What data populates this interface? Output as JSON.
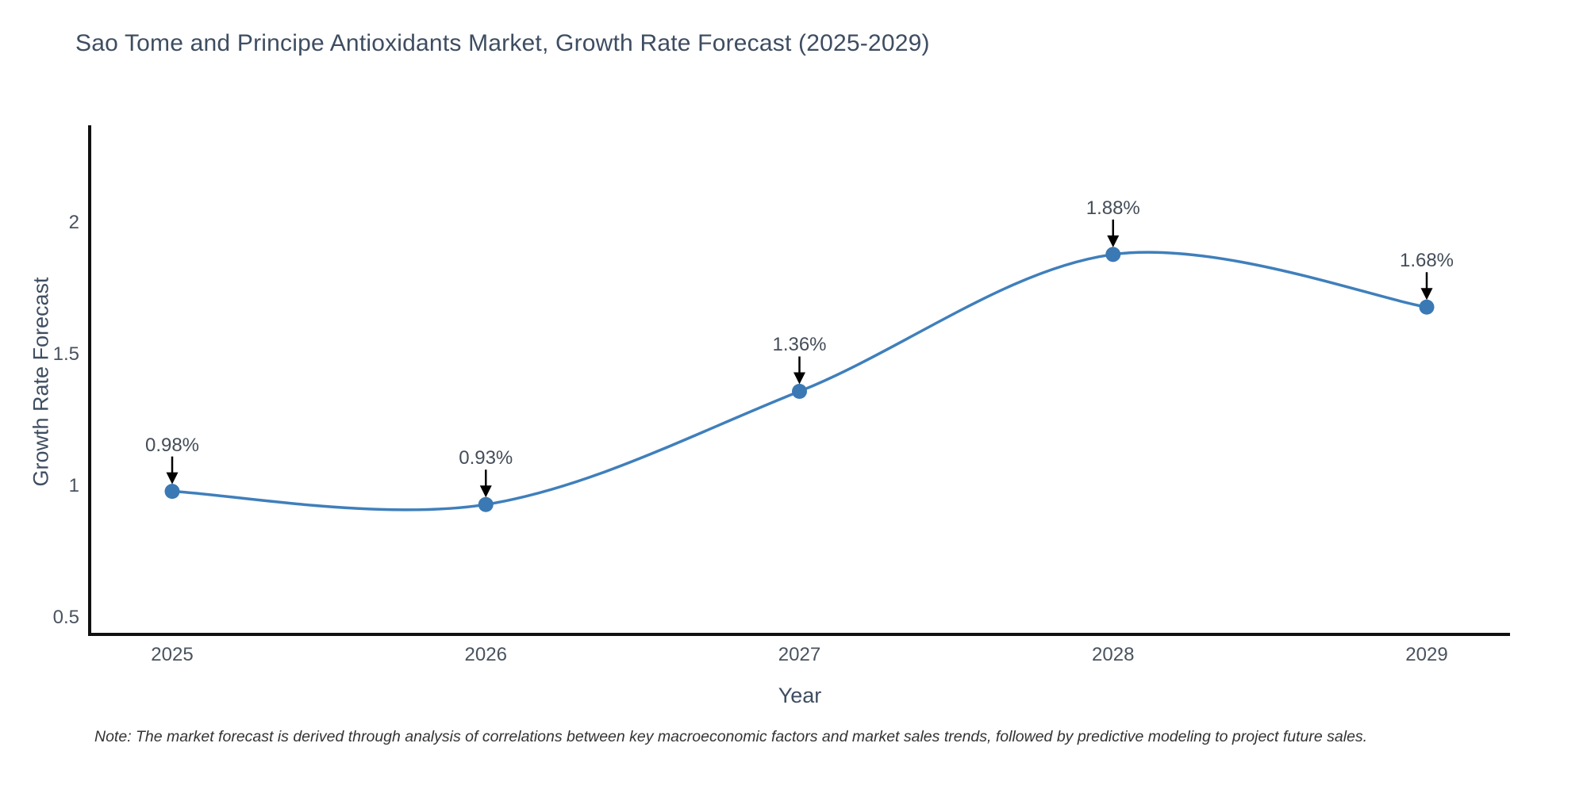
{
  "title": "Sao Tome and Principe Antioxidants Market, Growth Rate Forecast (2025-2029)",
  "note": "Note: The market forecast is derived through analysis of correlations between key macroeconomic factors and market sales trends, followed by predictive modeling to project future sales.",
  "chart_data": {
    "type": "line",
    "line_shape": "spline",
    "title": "Sao Tome and Principe Antioxidants Market, Growth Rate Forecast (2025-2029)",
    "xlabel": "Year",
    "ylabel": "Growth Rate Forecast",
    "categories": [
      "2025",
      "2026",
      "2027",
      "2028",
      "2029"
    ],
    "series": [
      {
        "name": "Growth Rate Forecast",
        "values": [
          0.98,
          0.93,
          1.36,
          1.88,
          1.68
        ]
      }
    ],
    "point_labels": [
      "0.98%",
      "0.93%",
      "1.36%",
      "1.88%",
      "1.68%"
    ],
    "yticks": [
      0.5,
      1,
      1.5,
      2
    ],
    "ytick_labels": [
      "0.5",
      "1",
      "1.5",
      "2"
    ],
    "ylim": [
      0.44,
      2.37
    ],
    "grid": false,
    "legend": "none",
    "colors": {
      "line": "#3f7fbb",
      "marker": "#3a79b4",
      "axis": "#111111",
      "annotation_arrow": "#000000",
      "text": "#3e4d61",
      "tick_text": "#49535f"
    }
  }
}
